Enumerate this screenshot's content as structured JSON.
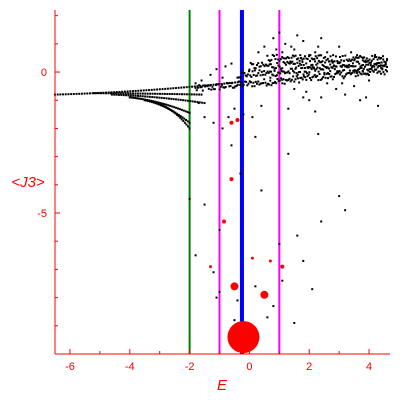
{
  "chart_data": {
    "type": "scatter",
    "title": "",
    "xlabel": "E",
    "ylabel": "<J3>",
    "xlim": [
      -6.5,
      4.7
    ],
    "ylim": [
      -10,
      2.2
    ],
    "grid": false,
    "colors": {
      "axis": "#ff0000",
      "points": "#000000",
      "highlight": "#ff0000",
      "line_green": "#008000",
      "line_magenta": "#ff00ff",
      "line_blue": "#0000ff"
    },
    "x_ticks": [
      {
        "value": -6,
        "label": "-6"
      },
      {
        "value": -4,
        "label": "-4"
      },
      {
        "value": -2,
        "label": "-2"
      },
      {
        "value": 0,
        "label": "0"
      },
      {
        "value": 2,
        "label": "2"
      },
      {
        "value": 4,
        "label": "4"
      }
    ],
    "y_ticks": [
      {
        "value": 0,
        "label": "0"
      },
      {
        "value": -5,
        "label": "-5"
      }
    ],
    "vertical_lines": [
      {
        "x": -2.0,
        "color": "#008000",
        "width": 2
      },
      {
        "x": -1.0,
        "color": "#ff00ff",
        "width": 2
      },
      {
        "x": -0.25,
        "color": "#0000ff",
        "width": 4
      },
      {
        "x": 1.0,
        "color": "#ff00ff",
        "width": 2
      }
    ],
    "branches": [
      {
        "x_start": -6.5,
        "x_end": -0.3,
        "y_start": -0.8,
        "y_end": -0.35,
        "n": 70
      },
      {
        "x_start": -5.2,
        "x_end": -1.6,
        "y_start": -0.75,
        "y_end": -0.8,
        "n": 45
      },
      {
        "x_start": -4.6,
        "x_end": -1.5,
        "y_start": -0.8,
        "y_end": -1.1,
        "n": 40
      },
      {
        "x_start": -4.0,
        "x_end": -2.0,
        "y_start": -0.9,
        "y_end": -1.45,
        "n": 32
      },
      {
        "x_start": -3.5,
        "x_end": -2.0,
        "y_start": -1.0,
        "y_end": -1.8,
        "n": 26
      },
      {
        "x_start": -3.0,
        "x_end": -2.0,
        "y_start": -1.15,
        "y_end": -2.0,
        "n": 20
      }
    ],
    "dense_bands": [
      {
        "x_start": -1.8,
        "x_end": 4.6,
        "y_start": -0.6,
        "y_end": 0.05,
        "n": 160
      },
      {
        "x_start": -0.4,
        "x_end": 4.6,
        "y_start": -0.1,
        "y_end": 0.2,
        "n": 130
      },
      {
        "x_start": 0.0,
        "x_end": 4.6,
        "y_start": 0.2,
        "y_end": 0.35,
        "n": 110
      },
      {
        "x_start": 0.6,
        "x_end": 4.6,
        "y_start": 0.5,
        "y_end": 0.45,
        "n": 90
      }
    ],
    "scattered_points": [
      [
        0.8,
        1.2
      ],
      [
        1.2,
        1.0
      ],
      [
        1.5,
        0.8
      ],
      [
        1.8,
        1.1
      ],
      [
        2.0,
        0.6
      ],
      [
        2.3,
        0.9
      ],
      [
        2.6,
        0.7
      ],
      [
        3.0,
        0.9
      ],
      [
        3.4,
        0.7
      ],
      [
        3.8,
        0.5
      ],
      [
        4.2,
        0.6
      ],
      [
        1.1,
        0.7
      ],
      [
        1.7,
        0.6
      ],
      [
        2.2,
        0.7
      ],
      [
        0.9,
        0.8
      ],
      [
        1.4,
        0.9
      ],
      [
        0.5,
        0.9
      ],
      [
        0.3,
        0.7
      ],
      [
        2.8,
        0.6
      ],
      [
        3.6,
        0.6
      ],
      [
        4.4,
        0.5
      ],
      [
        1.0,
        1.4
      ],
      [
        1.6,
        1.3
      ],
      [
        2.4,
        1.2
      ],
      [
        0.7,
        -0.2
      ],
      [
        1.1,
        -0.4
      ],
      [
        1.5,
        -0.6
      ],
      [
        1.8,
        -0.9
      ],
      [
        2.0,
        -1.0
      ],
      [
        2.4,
        -0.9
      ],
      [
        2.9,
        -0.6
      ],
      [
        3.2,
        -0.8
      ],
      [
        3.5,
        -0.5
      ],
      [
        3.9,
        -0.9
      ],
      [
        4.3,
        -1.2
      ],
      [
        1.3,
        -1.3
      ],
      [
        2.2,
        -1.4
      ],
      [
        3.1,
        -0.4
      ],
      [
        4.0,
        -0.3
      ],
      [
        2.6,
        -0.4
      ],
      [
        3.7,
        -1.0
      ],
      [
        1.9,
        -0.7
      ],
      [
        -1.6,
        -0.3
      ],
      [
        -1.3,
        -0.1
      ],
      [
        -1.1,
        0.1
      ],
      [
        -0.8,
        0.2
      ],
      [
        -0.6,
        0.3
      ],
      [
        -1.8,
        -0.4
      ],
      [
        -0.9,
        -0.2
      ],
      [
        -1.5,
        -1.6
      ],
      [
        -1.2,
        -1.8
      ],
      [
        -0.9,
        -2.0
      ],
      [
        -0.7,
        -1.6
      ],
      [
        -0.6,
        -2.6
      ],
      [
        -0.2,
        -1.5
      ],
      [
        0.1,
        -1.6
      ],
      [
        0.4,
        -1.2
      ],
      [
        0.2,
        -2.3
      ],
      [
        -0.5,
        -1.3
      ],
      [
        -1.7,
        -1.1
      ],
      [
        2.3,
        -2.2
      ],
      [
        3.0,
        -4.4
      ],
      [
        2.4,
        -5.3
      ],
      [
        3.2,
        -4.9
      ],
      [
        1.3,
        -2.9
      ],
      [
        0.4,
        -4.2
      ],
      [
        -0.3,
        -3.6
      ],
      [
        -1.5,
        -4.7
      ],
      [
        -1.0,
        -5.6
      ],
      [
        1.0,
        -6.1
      ],
      [
        1.6,
        -5.8
      ],
      [
        1.8,
        -6.7
      ],
      [
        -1.8,
        -6.5
      ],
      [
        -1.2,
        -7.1
      ],
      [
        1.1,
        -7.4
      ],
      [
        2.1,
        -7.7
      ],
      [
        -1.0,
        -7.8
      ],
      [
        0.2,
        -7.6
      ],
      [
        0.8,
        -8.3
      ],
      [
        0.6,
        -8.7
      ],
      [
        -0.5,
        -8.8
      ],
      [
        -1.1,
        -8.0
      ],
      [
        -2.0,
        -4.5
      ],
      [
        -0.4,
        -8.1
      ],
      [
        1.5,
        -8.9
      ]
    ],
    "highlighted_points": [
      {
        "x": -0.2,
        "y": -9.4,
        "size": 16
      },
      {
        "x": -0.5,
        "y": -7.6,
        "size": 4
      },
      {
        "x": 0.5,
        "y": -7.9,
        "size": 4
      },
      {
        "x": -0.6,
        "y": -1.8,
        "size": 2
      },
      {
        "x": -0.4,
        "y": -1.7,
        "size": 2
      },
      {
        "x": -0.6,
        "y": -3.8,
        "size": 2
      },
      {
        "x": -0.85,
        "y": -5.3,
        "size": 2
      },
      {
        "x": 1.1,
        "y": -6.9,
        "size": 2
      },
      {
        "x": 0.1,
        "y": -6.6,
        "size": 1.5
      },
      {
        "x": 0.7,
        "y": -6.7,
        "size": 1.5
      },
      {
        "x": -1.3,
        "y": -6.9,
        "size": 1.5
      }
    ]
  }
}
